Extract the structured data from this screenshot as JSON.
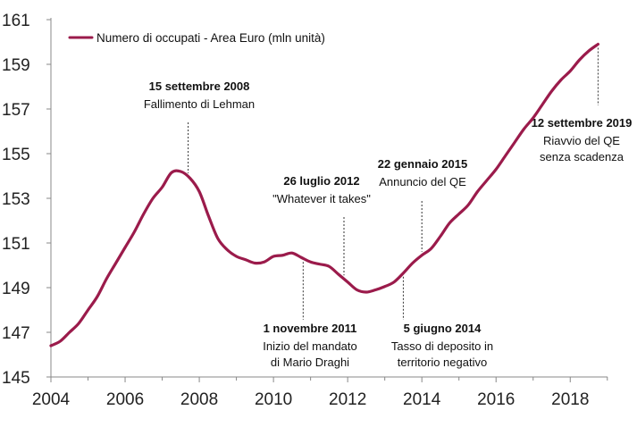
{
  "chart_data": {
    "type": "line",
    "series": [
      {
        "name": "Numero di occupati - Area Euro (mln unità)",
        "color": "#9b1b4b",
        "points": [
          [
            2004.0,
            146.4
          ],
          [
            2004.25,
            146.6
          ],
          [
            2004.5,
            147.0
          ],
          [
            2004.75,
            147.4
          ],
          [
            2005.0,
            148.0
          ],
          [
            2005.25,
            148.6
          ],
          [
            2005.5,
            149.4
          ],
          [
            2005.75,
            150.1
          ],
          [
            2006.0,
            150.8
          ],
          [
            2006.25,
            151.5
          ],
          [
            2006.5,
            152.3
          ],
          [
            2006.75,
            153.0
          ],
          [
            2007.0,
            153.5
          ],
          [
            2007.25,
            154.15
          ],
          [
            2007.5,
            154.2
          ],
          [
            2007.75,
            153.9
          ],
          [
            2008.0,
            153.3
          ],
          [
            2008.25,
            152.2
          ],
          [
            2008.5,
            151.2
          ],
          [
            2008.75,
            150.7
          ],
          [
            2009.0,
            150.4
          ],
          [
            2009.25,
            150.25
          ],
          [
            2009.5,
            150.1
          ],
          [
            2009.75,
            150.15
          ],
          [
            2010.0,
            150.4
          ],
          [
            2010.25,
            150.45
          ],
          [
            2010.5,
            150.55
          ],
          [
            2010.75,
            150.35
          ],
          [
            2011.0,
            150.15
          ],
          [
            2011.25,
            150.05
          ],
          [
            2011.5,
            149.95
          ],
          [
            2011.75,
            149.6
          ],
          [
            2012.0,
            149.25
          ],
          [
            2012.25,
            148.9
          ],
          [
            2012.5,
            148.8
          ],
          [
            2012.75,
            148.9
          ],
          [
            2013.0,
            149.05
          ],
          [
            2013.25,
            149.25
          ],
          [
            2013.5,
            149.65
          ],
          [
            2013.75,
            150.1
          ],
          [
            2014.0,
            150.45
          ],
          [
            2014.25,
            150.75
          ],
          [
            2014.5,
            151.3
          ],
          [
            2014.75,
            151.9
          ],
          [
            2015.0,
            152.3
          ],
          [
            2015.25,
            152.7
          ],
          [
            2015.5,
            153.3
          ],
          [
            2015.75,
            153.8
          ],
          [
            2016.0,
            154.3
          ],
          [
            2016.25,
            154.9
          ],
          [
            2016.5,
            155.5
          ],
          [
            2016.75,
            156.1
          ],
          [
            2017.0,
            156.6
          ],
          [
            2017.25,
            157.2
          ],
          [
            2017.5,
            157.8
          ],
          [
            2017.75,
            158.3
          ],
          [
            2018.0,
            158.7
          ],
          [
            2018.25,
            159.2
          ],
          [
            2018.5,
            159.6
          ],
          [
            2018.75,
            159.9
          ]
        ]
      }
    ],
    "xlim": [
      2004,
      2019.8
    ],
    "ylim": [
      145,
      161
    ],
    "xticks": [
      2004,
      2006,
      2008,
      2010,
      2012,
      2014,
      2016,
      2018
    ],
    "yticks": [
      145,
      147,
      149,
      151,
      153,
      155,
      157,
      159,
      161
    ],
    "grid": false,
    "legend_position": "top-left",
    "annotations": [
      {
        "x": 2007.7,
        "label_pos": "above",
        "title": "15 settembre 2008",
        "lines": [
          "Fallimento di Lehman"
        ]
      },
      {
        "x": 2011.9,
        "label_pos": "above",
        "title": "26 luglio 2012",
        "lines": [
          "\"Whatever it takes\""
        ]
      },
      {
        "x": 2014.0,
        "label_pos": "above",
        "title": "22 gennaio 2015",
        "lines": [
          "Annuncio del QE"
        ]
      },
      {
        "x": 2010.8,
        "label_pos": "below",
        "title": "1 novembre 2011",
        "lines": [
          "Inizio del mandato",
          "di Mario Draghi"
        ]
      },
      {
        "x": 2013.5,
        "label_pos": "below",
        "title": "5 giugno 2014",
        "lines": [
          "Tasso di deposito in",
          "territorio negativo"
        ]
      },
      {
        "x": 2018.75,
        "label_pos": "below",
        "title": "12 settembre 2019",
        "lines": [
          "Riavvio del QE",
          "senza scadenza"
        ]
      }
    ]
  }
}
